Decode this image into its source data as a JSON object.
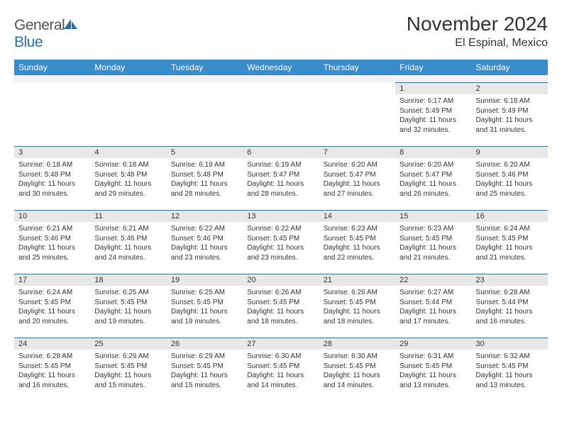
{
  "logo": {
    "word1": "General",
    "word2": "Blue"
  },
  "header": {
    "title": "November 2024",
    "location": "El Espinal, Mexico"
  },
  "colors": {
    "header_bg": "#3a8bc9",
    "header_text": "#ffffff",
    "daynum_bg": "#e8e8e8",
    "daynum_border_top": "#3a6fa0",
    "text": "#333333",
    "logo_gray": "#555555",
    "logo_blue": "#2f6fa8"
  },
  "daysOfWeek": [
    "Sunday",
    "Monday",
    "Tuesday",
    "Wednesday",
    "Thursday",
    "Friday",
    "Saturday"
  ],
  "weeks": [
    [
      null,
      null,
      null,
      null,
      null,
      {
        "n": "1",
        "sunrise": "Sunrise: 6:17 AM",
        "sunset": "Sunset: 5:49 PM",
        "daylight": "Daylight: 11 hours and 32 minutes."
      },
      {
        "n": "2",
        "sunrise": "Sunrise: 6:18 AM",
        "sunset": "Sunset: 5:49 PM",
        "daylight": "Daylight: 11 hours and 31 minutes."
      }
    ],
    [
      {
        "n": "3",
        "sunrise": "Sunrise: 6:18 AM",
        "sunset": "Sunset: 5:48 PM",
        "daylight": "Daylight: 11 hours and 30 minutes."
      },
      {
        "n": "4",
        "sunrise": "Sunrise: 6:18 AM",
        "sunset": "Sunset: 5:48 PM",
        "daylight": "Daylight: 11 hours and 29 minutes."
      },
      {
        "n": "5",
        "sunrise": "Sunrise: 6:19 AM",
        "sunset": "Sunset: 5:48 PM",
        "daylight": "Daylight: 11 hours and 28 minutes."
      },
      {
        "n": "6",
        "sunrise": "Sunrise: 6:19 AM",
        "sunset": "Sunset: 5:47 PM",
        "daylight": "Daylight: 11 hours and 28 minutes."
      },
      {
        "n": "7",
        "sunrise": "Sunrise: 6:20 AM",
        "sunset": "Sunset: 5:47 PM",
        "daylight": "Daylight: 11 hours and 27 minutes."
      },
      {
        "n": "8",
        "sunrise": "Sunrise: 6:20 AM",
        "sunset": "Sunset: 5:47 PM",
        "daylight": "Daylight: 11 hours and 26 minutes."
      },
      {
        "n": "9",
        "sunrise": "Sunrise: 6:20 AM",
        "sunset": "Sunset: 5:46 PM",
        "daylight": "Daylight: 11 hours and 25 minutes."
      }
    ],
    [
      {
        "n": "10",
        "sunrise": "Sunrise: 6:21 AM",
        "sunset": "Sunset: 5:46 PM",
        "daylight": "Daylight: 11 hours and 25 minutes."
      },
      {
        "n": "11",
        "sunrise": "Sunrise: 6:21 AM",
        "sunset": "Sunset: 5:46 PM",
        "daylight": "Daylight: 11 hours and 24 minutes."
      },
      {
        "n": "12",
        "sunrise": "Sunrise: 6:22 AM",
        "sunset": "Sunset: 5:46 PM",
        "daylight": "Daylight: 11 hours and 23 minutes."
      },
      {
        "n": "13",
        "sunrise": "Sunrise: 6:22 AM",
        "sunset": "Sunset: 5:45 PM",
        "daylight": "Daylight: 11 hours and 23 minutes."
      },
      {
        "n": "14",
        "sunrise": "Sunrise: 6:23 AM",
        "sunset": "Sunset: 5:45 PM",
        "daylight": "Daylight: 11 hours and 22 minutes."
      },
      {
        "n": "15",
        "sunrise": "Sunrise: 6:23 AM",
        "sunset": "Sunset: 5:45 PM",
        "daylight": "Daylight: 11 hours and 21 minutes."
      },
      {
        "n": "16",
        "sunrise": "Sunrise: 6:24 AM",
        "sunset": "Sunset: 5:45 PM",
        "daylight": "Daylight: 11 hours and 21 minutes."
      }
    ],
    [
      {
        "n": "17",
        "sunrise": "Sunrise: 6:24 AM",
        "sunset": "Sunset: 5:45 PM",
        "daylight": "Daylight: 11 hours and 20 minutes."
      },
      {
        "n": "18",
        "sunrise": "Sunrise: 6:25 AM",
        "sunset": "Sunset: 5:45 PM",
        "daylight": "Daylight: 11 hours and 19 minutes."
      },
      {
        "n": "19",
        "sunrise": "Sunrise: 6:25 AM",
        "sunset": "Sunset: 5:45 PM",
        "daylight": "Daylight: 11 hours and 19 minutes."
      },
      {
        "n": "20",
        "sunrise": "Sunrise: 6:26 AM",
        "sunset": "Sunset: 5:45 PM",
        "daylight": "Daylight: 11 hours and 18 minutes."
      },
      {
        "n": "21",
        "sunrise": "Sunrise: 6:26 AM",
        "sunset": "Sunset: 5:45 PM",
        "daylight": "Daylight: 11 hours and 18 minutes."
      },
      {
        "n": "22",
        "sunrise": "Sunrise: 6:27 AM",
        "sunset": "Sunset: 5:44 PM",
        "daylight": "Daylight: 11 hours and 17 minutes."
      },
      {
        "n": "23",
        "sunrise": "Sunrise: 6:28 AM",
        "sunset": "Sunset: 5:44 PM",
        "daylight": "Daylight: 11 hours and 16 minutes."
      }
    ],
    [
      {
        "n": "24",
        "sunrise": "Sunrise: 6:28 AM",
        "sunset": "Sunset: 5:45 PM",
        "daylight": "Daylight: 11 hours and 16 minutes."
      },
      {
        "n": "25",
        "sunrise": "Sunrise: 6:29 AM",
        "sunset": "Sunset: 5:45 PM",
        "daylight": "Daylight: 11 hours and 15 minutes."
      },
      {
        "n": "26",
        "sunrise": "Sunrise: 6:29 AM",
        "sunset": "Sunset: 5:45 PM",
        "daylight": "Daylight: 11 hours and 15 minutes."
      },
      {
        "n": "27",
        "sunrise": "Sunrise: 6:30 AM",
        "sunset": "Sunset: 5:45 PM",
        "daylight": "Daylight: 11 hours and 14 minutes."
      },
      {
        "n": "28",
        "sunrise": "Sunrise: 6:30 AM",
        "sunset": "Sunset: 5:45 PM",
        "daylight": "Daylight: 11 hours and 14 minutes."
      },
      {
        "n": "29",
        "sunrise": "Sunrise: 6:31 AM",
        "sunset": "Sunset: 5:45 PM",
        "daylight": "Daylight: 11 hours and 13 minutes."
      },
      {
        "n": "30",
        "sunrise": "Sunrise: 6:32 AM",
        "sunset": "Sunset: 5:45 PM",
        "daylight": "Daylight: 11 hours and 13 minutes."
      }
    ]
  ]
}
